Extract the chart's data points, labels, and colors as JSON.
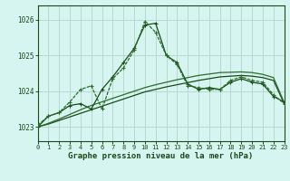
{
  "title": "Graphe pression niveau de la mer (hPa)",
  "bg_color": "#d6f5f0",
  "plot_bg_color": "#d6f5f0",
  "grid_color": "#b8d8d0",
  "line_color_dark": "#1a4a1a",
  "line_color_mid": "#2d6b2d",
  "xlim": [
    0,
    23
  ],
  "ylim": [
    1022.6,
    1026.4
  ],
  "yticks": [
    1023,
    1024,
    1025,
    1026
  ],
  "xticks": [
    0,
    1,
    2,
    3,
    4,
    5,
    6,
    7,
    8,
    9,
    10,
    11,
    12,
    13,
    14,
    15,
    16,
    17,
    18,
    19,
    20,
    21,
    22,
    23
  ],
  "series1_x": [
    0,
    1,
    2,
    3,
    4,
    5,
    6,
    7,
    8,
    9,
    10,
    11,
    12,
    13,
    14,
    15,
    16,
    17,
    18,
    19,
    20,
    21,
    22,
    23
  ],
  "series1_y": [
    1023.0,
    1023.3,
    1023.4,
    1023.6,
    1023.65,
    1023.5,
    1024.05,
    1024.4,
    1024.8,
    1025.2,
    1025.85,
    1025.9,
    1025.0,
    1024.8,
    1024.2,
    1024.05,
    1024.1,
    1024.05,
    1024.25,
    1024.35,
    1024.25,
    1024.2,
    1023.85,
    1023.7
  ],
  "series2_x": [
    0,
    1,
    2,
    3,
    4,
    5,
    6,
    7,
    8,
    9,
    10,
    11,
    12,
    13,
    14,
    15,
    16,
    17,
    18,
    19,
    20,
    21,
    22,
    23
  ],
  "series2_y": [
    1023.05,
    1023.3,
    1023.4,
    1023.7,
    1024.05,
    1024.15,
    1023.5,
    1024.35,
    1024.65,
    1025.15,
    1025.95,
    1025.65,
    1025.0,
    1024.75,
    1024.15,
    1024.1,
    1024.05,
    1024.05,
    1024.3,
    1024.4,
    1024.3,
    1024.25,
    1023.9,
    1023.65
  ],
  "series3_x": [
    0,
    1,
    2,
    3,
    4,
    5,
    6,
    7,
    8,
    9,
    10,
    11,
    12,
    13,
    14,
    15,
    16,
    17,
    18,
    19,
    20,
    21,
    22,
    23
  ],
  "series3_y": [
    1023.0,
    1023.08,
    1023.18,
    1023.28,
    1023.38,
    1023.48,
    1023.58,
    1023.68,
    1023.78,
    1023.88,
    1023.98,
    1024.05,
    1024.12,
    1024.18,
    1024.24,
    1024.3,
    1024.35,
    1024.4,
    1024.42,
    1024.44,
    1024.42,
    1024.38,
    1024.3,
    1023.65
  ],
  "series4_x": [
    0,
    1,
    2,
    3,
    4,
    5,
    6,
    7,
    8,
    9,
    10,
    11,
    12,
    13,
    14,
    15,
    16,
    17,
    18,
    19,
    20,
    21,
    22,
    23
  ],
  "series4_y": [
    1023.0,
    1023.1,
    1023.22,
    1023.35,
    1023.48,
    1023.6,
    1023.7,
    1023.8,
    1023.9,
    1024.0,
    1024.1,
    1024.18,
    1024.25,
    1024.32,
    1024.38,
    1024.44,
    1024.48,
    1024.52,
    1024.53,
    1024.54,
    1024.52,
    1024.47,
    1024.38,
    1023.68
  ]
}
